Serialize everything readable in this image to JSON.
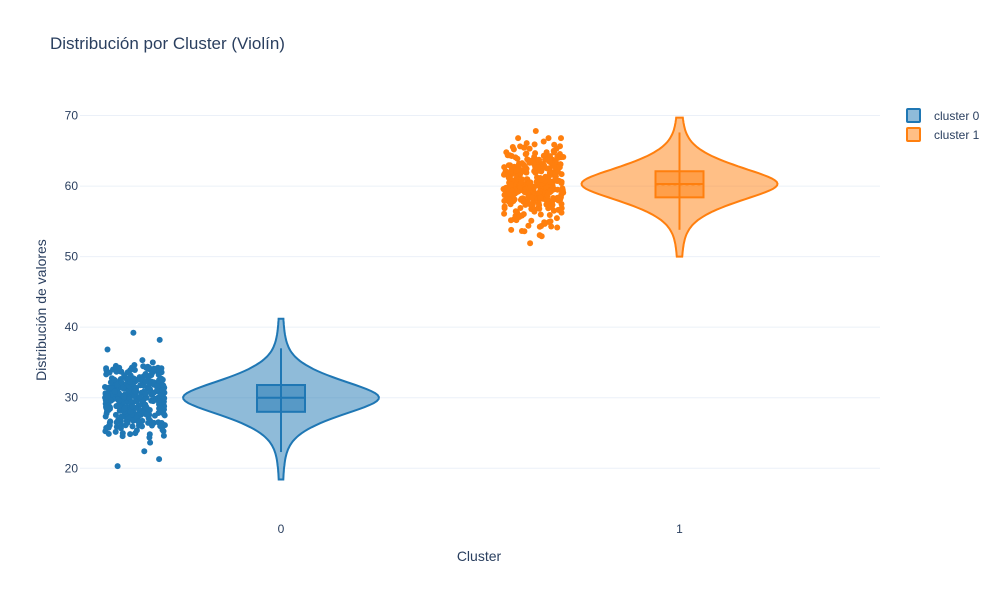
{
  "chart_data": {
    "type": "violin",
    "title": "Distribución por Cluster (Violín)",
    "xlabel": "Cluster",
    "ylabel": "Distribución de valores",
    "categories": [
      "0",
      "1"
    ],
    "ylim": [
      15.5,
      72.2
    ],
    "yticks": [
      20,
      30,
      40,
      50,
      60,
      70
    ],
    "grid": true,
    "legend_position": "top-right",
    "show_points": "all",
    "show_box": true,
    "series": [
      {
        "name": "cluster 0",
        "category": "0",
        "color": "#1f77b4",
        "min": 20.3,
        "max": 39.2,
        "kde_range": [
          18.4,
          41.2
        ],
        "q1": 28.0,
        "median": 30.0,
        "mean": 30.0,
        "q3": 31.8,
        "whisker_low": 22.3,
        "whisker_high": 37.0,
        "n_points": 350
      },
      {
        "name": "cluster 1",
        "category": "1",
        "color": "#ff7f0e",
        "min": 51.9,
        "max": 67.8,
        "kde_range": [
          50.0,
          69.7
        ],
        "q1": 58.4,
        "median": 60.3,
        "mean": 60.2,
        "q3": 62.1,
        "whisker_low": 53.8,
        "whisker_high": 67.6,
        "n_points": 350
      }
    ]
  },
  "legend": [
    {
      "label": "cluster 0",
      "color": "#1f77b4"
    },
    {
      "label": "cluster 1",
      "color": "#ff7f0e"
    }
  ]
}
